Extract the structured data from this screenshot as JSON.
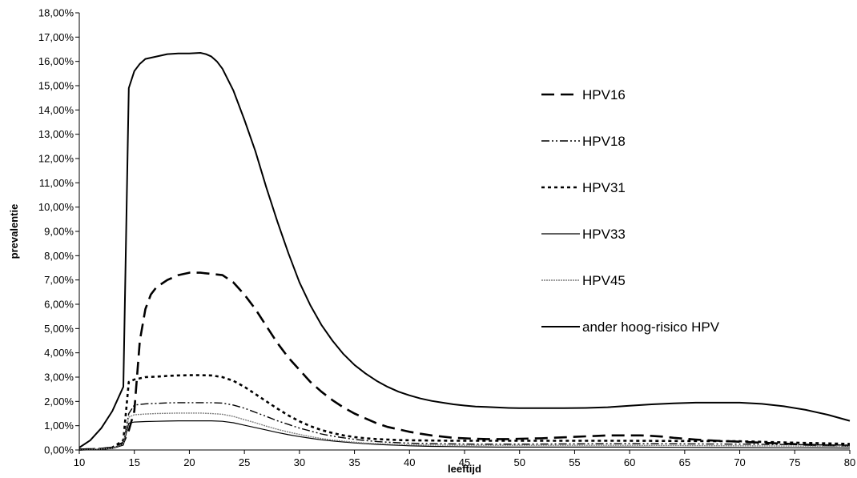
{
  "chart_data": {
    "type": "line",
    "xlabel": "leeftijd",
    "ylabel": "prevalentie",
    "xlim": [
      10,
      80
    ],
    "ylim": [
      0,
      18
    ],
    "x_ticks": [
      "10",
      "15",
      "20",
      "25",
      "30",
      "35",
      "40",
      "45",
      "50",
      "55",
      "60",
      "65",
      "70",
      "75",
      "80"
    ],
    "y_ticks": [
      "0,00%",
      "1,00%",
      "2,00%",
      "3,00%",
      "4,00%",
      "5,00%",
      "6,00%",
      "7,00%",
      "8,00%",
      "9,00%",
      "10,00%",
      "11,00%",
      "12,00%",
      "13,00%",
      "14,00%",
      "15,00%",
      "16,00%",
      "17,00%",
      "18,00%"
    ],
    "grid": false,
    "legend_position": "right",
    "series": [
      {
        "name": "HPV16",
        "color": "#000000",
        "x": [
          10,
          11,
          12,
          13,
          14,
          14.5,
          15,
          15.5,
          16,
          16.5,
          17,
          18,
          19,
          20,
          21,
          22,
          23,
          24,
          25,
          26,
          27,
          28,
          29,
          30,
          31,
          32,
          33,
          34,
          35,
          36,
          37,
          38,
          39,
          40,
          41,
          42,
          43,
          44,
          45,
          46,
          47,
          48,
          49,
          50,
          51,
          52,
          53,
          54,
          55,
          56,
          57,
          58,
          59,
          60,
          61,
          62,
          63,
          64,
          65,
          66,
          67,
          68,
          69,
          70,
          71,
          72,
          73,
          74,
          75,
          76,
          77,
          78,
          79,
          80
        ],
        "y": [
          0.02,
          0.03,
          0.05,
          0.1,
          0.3,
          0.8,
          1.6,
          4.5,
          5.8,
          6.4,
          6.7,
          7.0,
          7.2,
          7.3,
          7.3,
          7.25,
          7.2,
          6.9,
          6.4,
          5.8,
          5.1,
          4.4,
          3.8,
          3.3,
          2.8,
          2.4,
          2.05,
          1.75,
          1.5,
          1.3,
          1.1,
          0.95,
          0.85,
          0.75,
          0.67,
          0.6,
          0.55,
          0.5,
          0.48,
          0.46,
          0.45,
          0.45,
          0.45,
          0.46,
          0.47,
          0.48,
          0.5,
          0.52,
          0.54,
          0.56,
          0.58,
          0.6,
          0.6,
          0.6,
          0.6,
          0.58,
          0.55,
          0.5,
          0.46,
          0.43,
          0.4,
          0.38,
          0.36,
          0.34,
          0.32,
          0.3,
          0.28,
          0.26,
          0.24,
          0.22,
          0.2,
          0.19,
          0.18,
          0.17
        ]
      },
      {
        "name": "HPV18",
        "color": "#000000",
        "x": [
          10,
          11,
          12,
          13,
          14,
          14.5,
          15,
          16,
          17,
          18,
          19,
          20,
          21,
          22,
          23,
          24,
          25,
          26,
          27,
          28,
          29,
          30,
          31,
          32,
          33,
          34,
          35,
          36,
          37,
          38,
          39,
          40,
          42,
          44,
          46,
          48,
          50,
          55,
          60,
          65,
          70,
          75,
          80
        ],
        "y": [
          0.01,
          0.02,
          0.04,
          0.08,
          0.25,
          1.5,
          1.85,
          1.9,
          1.92,
          1.94,
          1.95,
          1.95,
          1.95,
          1.95,
          1.93,
          1.85,
          1.72,
          1.55,
          1.38,
          1.2,
          1.05,
          0.9,
          0.78,
          0.66,
          0.57,
          0.5,
          0.44,
          0.39,
          0.35,
          0.32,
          0.3,
          0.28,
          0.26,
          0.25,
          0.24,
          0.24,
          0.24,
          0.25,
          0.26,
          0.25,
          0.24,
          0.22,
          0.2
        ]
      },
      {
        "name": "HPV31",
        "color": "#000000",
        "x": [
          10,
          11,
          12,
          13,
          14,
          14.5,
          15,
          16,
          17,
          18,
          19,
          20,
          21,
          22,
          23,
          24,
          25,
          26,
          27,
          28,
          29,
          30,
          31,
          32,
          33,
          34,
          35,
          36,
          37,
          38,
          39,
          40,
          42,
          44,
          46,
          48,
          50,
          55,
          60,
          65,
          70,
          75,
          80
        ],
        "y": [
          0.02,
          0.03,
          0.05,
          0.1,
          0.4,
          2.8,
          2.9,
          3.0,
          3.02,
          3.05,
          3.07,
          3.08,
          3.08,
          3.07,
          3.0,
          2.85,
          2.6,
          2.3,
          2.0,
          1.7,
          1.42,
          1.18,
          0.98,
          0.82,
          0.7,
          0.6,
          0.53,
          0.48,
          0.45,
          0.43,
          0.41,
          0.4,
          0.39,
          0.38,
          0.38,
          0.38,
          0.38,
          0.38,
          0.38,
          0.37,
          0.36,
          0.3,
          0.25
        ]
      },
      {
        "name": "HPV33",
        "color": "#000000",
        "x": [
          10,
          11,
          12,
          13,
          14,
          14.5,
          15,
          16,
          17,
          18,
          19,
          20,
          21,
          22,
          23,
          24,
          25,
          26,
          27,
          28,
          29,
          30,
          31,
          32,
          33,
          34,
          35,
          36,
          37,
          38,
          39,
          40,
          42,
          44,
          46,
          48,
          50,
          55,
          60,
          65,
          70,
          75,
          80
        ],
        "y": [
          0.01,
          0.02,
          0.03,
          0.06,
          0.2,
          1.1,
          1.15,
          1.17,
          1.18,
          1.19,
          1.2,
          1.2,
          1.2,
          1.2,
          1.18,
          1.12,
          1.02,
          0.92,
          0.82,
          0.72,
          0.63,
          0.55,
          0.48,
          0.42,
          0.37,
          0.33,
          0.29,
          0.26,
          0.23,
          0.21,
          0.19,
          0.17,
          0.15,
          0.14,
          0.13,
          0.12,
          0.12,
          0.12,
          0.12,
          0.11,
          0.1,
          0.09,
          0.08
        ]
      },
      {
        "name": "HPV45",
        "color": "#7f7f7f",
        "x": [
          10,
          11,
          12,
          13,
          14,
          14.5,
          15,
          16,
          17,
          18,
          19,
          20,
          21,
          22,
          23,
          24,
          25,
          26,
          27,
          28,
          29,
          30,
          31,
          32,
          33,
          34,
          35,
          36,
          37,
          38,
          39,
          40,
          42,
          44,
          46,
          48,
          50,
          55,
          60,
          65,
          70,
          75,
          80
        ],
        "y": [
          0.01,
          0.02,
          0.04,
          0.07,
          0.25,
          1.35,
          1.45,
          1.48,
          1.5,
          1.51,
          1.52,
          1.52,
          1.52,
          1.5,
          1.47,
          1.38,
          1.25,
          1.12,
          0.98,
          0.85,
          0.74,
          0.64,
          0.55,
          0.47,
          0.41,
          0.36,
          0.32,
          0.28,
          0.26,
          0.24,
          0.22,
          0.21,
          0.2,
          0.19,
          0.19,
          0.19,
          0.19,
          0.19,
          0.19,
          0.18,
          0.17,
          0.16,
          0.15
        ]
      },
      {
        "name": "ander hoog-risico HPV",
        "color": "#000000",
        "x": [
          10,
          11,
          12,
          13,
          14,
          14.5,
          15,
          15.5,
          16,
          17,
          18,
          19,
          20,
          21,
          21.5,
          22,
          22.5,
          23,
          24,
          25,
          26,
          27,
          28,
          29,
          30,
          31,
          32,
          33,
          34,
          35,
          36,
          37,
          38,
          39,
          40,
          41,
          42,
          43,
          44,
          45,
          46,
          47,
          48,
          49,
          50,
          52,
          54,
          56,
          58,
          60,
          62,
          64,
          66,
          68,
          70,
          72,
          74,
          76,
          78,
          80
        ],
        "y": [
          0.1,
          0.4,
          0.9,
          1.6,
          2.6,
          14.9,
          15.6,
          15.9,
          16.1,
          16.2,
          16.3,
          16.33,
          16.33,
          16.35,
          16.3,
          16.2,
          16.0,
          15.7,
          14.8,
          13.6,
          12.3,
          10.8,
          9.4,
          8.1,
          6.9,
          5.95,
          5.15,
          4.5,
          3.95,
          3.5,
          3.15,
          2.85,
          2.6,
          2.4,
          2.25,
          2.12,
          2.02,
          1.95,
          1.88,
          1.83,
          1.79,
          1.77,
          1.75,
          1.73,
          1.72,
          1.72,
          1.72,
          1.73,
          1.76,
          1.82,
          1.88,
          1.92,
          1.95,
          1.95,
          1.95,
          1.9,
          1.8,
          1.65,
          1.45,
          1.2
        ]
      }
    ],
    "legend": [
      {
        "label": "HPV16",
        "dash": "16 8",
        "width": 2.6,
        "color": "#000000"
      },
      {
        "label": "HPV18",
        "dash": "10 3 2 3 2 3",
        "width": 1.4,
        "color": "#000000"
      },
      {
        "label": "HPV31",
        "dash": "4 4",
        "width": 2.6,
        "color": "#000000"
      },
      {
        "label": "HPV33",
        "dash": "",
        "width": 1.2,
        "color": "#000000"
      },
      {
        "label": "HPV45",
        "dash": "2 1",
        "width": 1.4,
        "color": "#7f7f7f"
      },
      {
        "label": "ander hoog-risico HPV",
        "dash": "",
        "width": 2.0,
        "color": "#000000"
      }
    ]
  }
}
